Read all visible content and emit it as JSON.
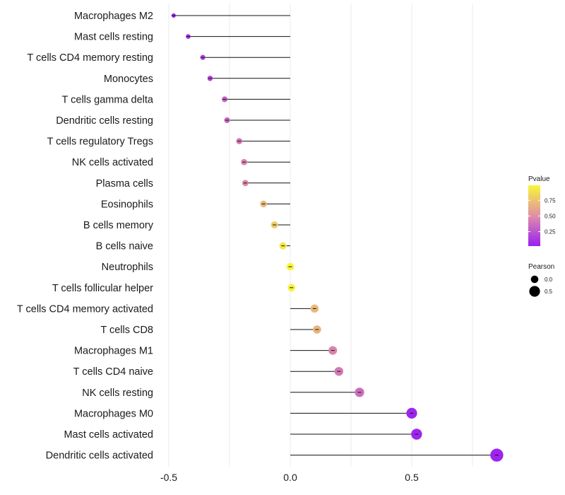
{
  "chart_data": {
    "type": "lollipop",
    "title": "",
    "xlabel": "",
    "ylabel": "",
    "xlim": [
      -0.5,
      0.85
    ],
    "x_ticks": [
      "-0.5",
      "0.0",
      "0.5"
    ],
    "categories": [
      "Macrophages M2",
      "Mast cells resting",
      "T cells CD4 memory resting",
      "Monocytes",
      "T cells gamma delta",
      "Dendritic cells resting",
      "T cells regulatory  Tregs",
      "NK cells activated",
      "Plasma cells",
      "Eosinophils",
      "B cells memory",
      "B cells naive",
      "Neutrophils",
      "T cells follicular helper",
      "T cells CD4 memory activated",
      "T cells CD8",
      "Macrophages M1",
      "T cells CD4 naive",
      "NK cells resting",
      "Macrophages M0",
      "Mast cells activated",
      "Dendritic cells activated"
    ],
    "pearson": [
      -0.48,
      -0.42,
      -0.36,
      -0.33,
      -0.27,
      -0.26,
      -0.21,
      -0.19,
      -0.185,
      -0.11,
      -0.065,
      -0.03,
      0.0,
      0.005,
      0.1,
      0.11,
      0.175,
      0.2,
      0.285,
      0.5,
      0.52,
      0.85
    ],
    "pvalue": [
      0.03,
      0.1,
      0.15,
      0.18,
      0.3,
      0.33,
      0.4,
      0.46,
      0.47,
      0.7,
      0.8,
      0.93,
      0.99,
      0.98,
      0.7,
      0.68,
      0.45,
      0.4,
      0.35,
      0.03,
      0.03,
      0.02
    ],
    "legend": {
      "color_title": "Pvalue",
      "color_ticks": [
        "0.75",
        "0.50",
        "0.25"
      ],
      "size_title": "Pearson",
      "size_ticks": [
        "0.0",
        "0.5"
      ]
    },
    "color_low": "#9a1ff2",
    "color_mid": "#e08fa6",
    "color_high": "#f7f73a",
    "grid": true,
    "legend_position": "right"
  }
}
